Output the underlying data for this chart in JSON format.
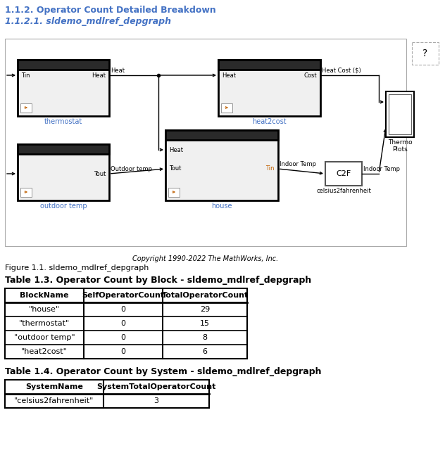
{
  "title1": "1.1.2. Operator Count Detailed Breakdown",
  "title2": "1.1.2.1. sldemo_mdlref_depgraph",
  "figure_caption": "Figure 1.1. sldemo_mdlref_depgraph",
  "copyright": "Copyright 1990-2022 The MathWorks, Inc.",
  "table1_title": "Table 1.3. Operator Count by Block - sldemo_mdlref_depgraph",
  "table1_headers": [
    "BlockName",
    "SelfOperatorCount",
    "TotalOperatorCount"
  ],
  "table1_rows": [
    [
      "\"house\"",
      "0",
      "29"
    ],
    [
      "\"thermostat\"",
      "0",
      "15"
    ],
    [
      "\"outdoor temp\"",
      "0",
      "8"
    ],
    [
      "\"heat2cost\"",
      "0",
      "6"
    ]
  ],
  "table2_title": "Table 1.4. Operator Count by System - sldemo_mdlref_depgraph",
  "table2_headers": [
    "SystemName",
    "SystemTotalOperatorCount"
  ],
  "table2_rows": [
    [
      "\"celsius2fahrenheit\"",
      "3"
    ]
  ],
  "bg_color": "#ffffff",
  "title1_color": "#4472c4",
  "title2_color": "#4472c4",
  "label_blue": "#4472c4"
}
